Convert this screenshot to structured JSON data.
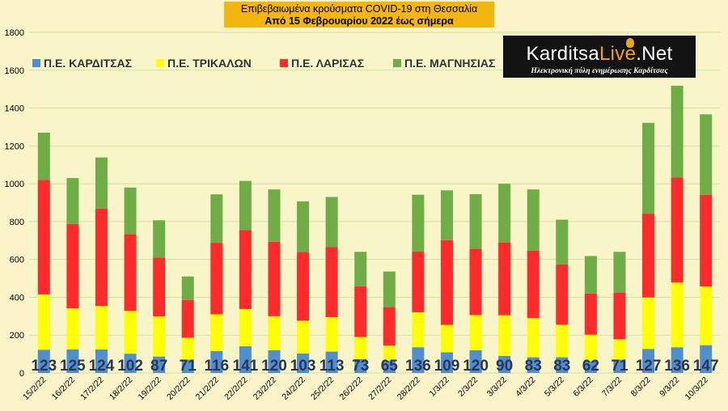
{
  "title": {
    "line1": "Επιβεβαιωμένα κρούσματα COVID-19 στη Θεσσαλία",
    "line2": "Από 15 Φεβρουαρίου 2022 έως σήμερα"
  },
  "logo": {
    "brand_prefix": "Karditsa",
    "brand_accent": "Live",
    "brand_suffix": ".Net",
    "tagline": "Ηλεκτρονική πύλη ενημέρωσης Καρδίτσας"
  },
  "colors": {
    "background": "#fdf3c9",
    "plot_area": "#f8f6c8",
    "gridline": "#cfe3a2",
    "title_box": "#f3b60f",
    "label_text": "#2d3552"
  },
  "chart_data": {
    "type": "bar",
    "stacked": true,
    "categories": [
      "15/2/22",
      "16/2/22",
      "17/2/22",
      "18/2/22",
      "19/2/22",
      "20/2/22",
      "21/2/22",
      "22/2/22",
      "23/2/22",
      "24/2/22",
      "25/2/22",
      "26/2/22",
      "27/2/22",
      "28/2/22",
      "1/3/22",
      "2/3/22",
      "3/3/22",
      "4/3/22",
      "5/3/22",
      "6/3/22",
      "7/3/22",
      "8/3/22",
      "9/3/22",
      "10/3/22"
    ],
    "series": [
      {
        "name": "Π.Ε. ΚΑΡΔΙΤΣΑΣ",
        "color": "#4f8fd0",
        "values": [
          123,
          125,
          124,
          102,
          87,
          71,
          116,
          141,
          120,
          103,
          113,
          73,
          65,
          136,
          109,
          120,
          90,
          83,
          83,
          62,
          71,
          127,
          136,
          147
        ]
      },
      {
        "name": "Π.Ε. ΤΡΙΚΑΛΩΝ",
        "color": "#ffff00",
        "values": [
          292,
          217,
          230,
          226,
          212,
          115,
          194,
          197,
          180,
          173,
          182,
          117,
          80,
          185,
          145,
          186,
          215,
          207,
          172,
          140,
          107,
          272,
          342,
          310
        ]
      },
      {
        "name": "Π.Ε. ΛΑΡΙΣΑΣ",
        "color": "#ff2a2a",
        "values": [
          605,
          445,
          515,
          405,
          310,
          200,
          378,
          417,
          393,
          363,
          370,
          268,
          203,
          320,
          448,
          350,
          385,
          357,
          318,
          218,
          247,
          443,
          555,
          485
        ]
      },
      {
        "name": "Π.Ε. ΜΑΓΝΗΣΙΑΣ",
        "color": "#70ad47",
        "values": [
          250,
          243,
          270,
          247,
          198,
          124,
          256,
          260,
          277,
          268,
          265,
          182,
          188,
          301,
          263,
          289,
          310,
          323,
          237,
          198,
          215,
          480,
          485,
          425
        ]
      }
    ],
    "data_labels": [
      "123",
      "125",
      "124",
      "102",
      "87",
      "71",
      "116",
      "141",
      "120",
      "103",
      "113",
      "73",
      "65",
      "136",
      "109",
      "120",
      "90",
      "83",
      "83",
      "62",
      "71",
      "127",
      "136",
      "147"
    ],
    "ylim": [
      0,
      1800
    ],
    "yticks": [
      0,
      200,
      400,
      600,
      800,
      1000,
      1200,
      1400,
      1600,
      1800
    ],
    "grid": true,
    "legend_position": "top-left",
    "xlabel": "",
    "ylabel": ""
  }
}
